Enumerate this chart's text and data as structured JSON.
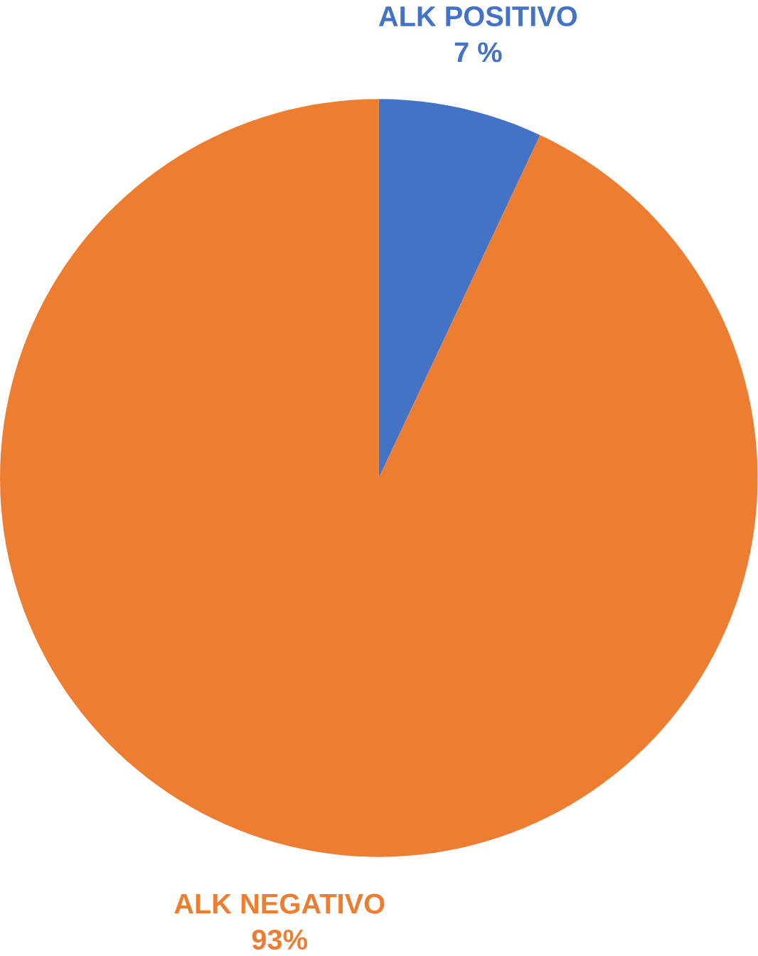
{
  "chart_data": {
    "type": "pie",
    "categories": [
      "ALK POSITIVO",
      "ALK NEGATIVO"
    ],
    "values": [
      7,
      93
    ],
    "colors": [
      "#4472c4",
      "#ed7d31"
    ],
    "value_labels": [
      "7 %",
      "93%"
    ]
  }
}
